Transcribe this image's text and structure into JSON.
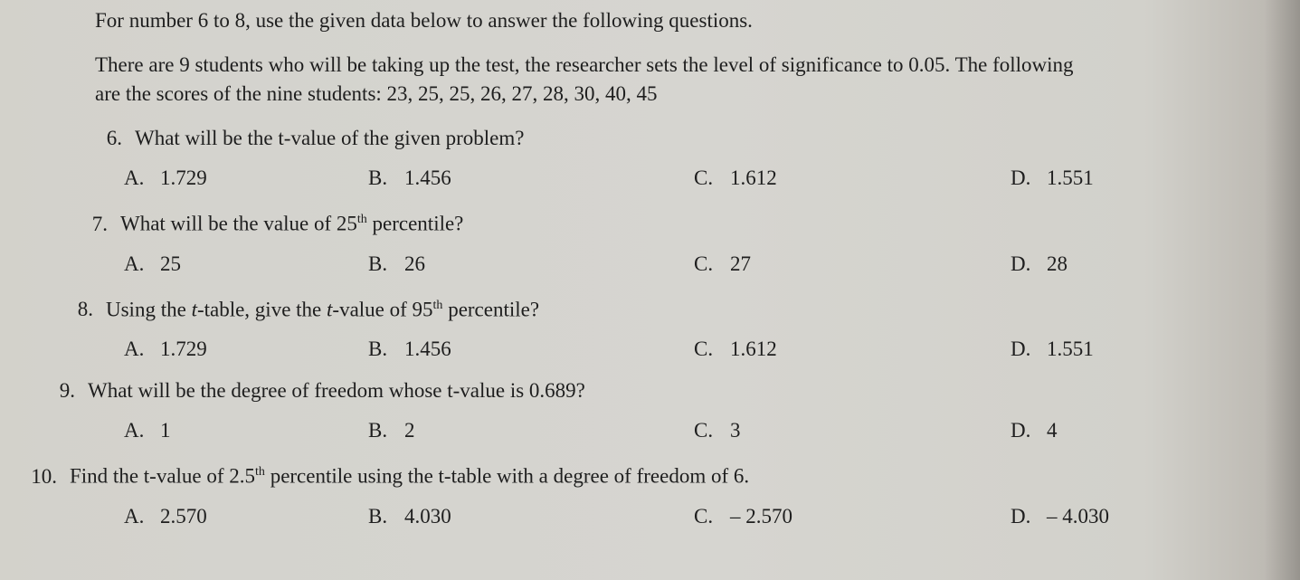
{
  "intro": "For number 6 to 8, use the given data below to answer the following questions.",
  "context_l1": "There are 9 students who will be taking up the test, the researcher sets the level of significance to 0.05. The following",
  "context_l2": "are the scores of the nine students: 23, 25, 25, 26, 27, 28, 30, 40, 45",
  "q6": {
    "num": "6.",
    "text": "What will be the t-value of the given problem?",
    "A": "1.729",
    "B": "1.456",
    "C": "1.612",
    "D": "1.551"
  },
  "q7": {
    "num": "7.",
    "text_pre": "What will be the value of 25",
    "text_sup": "th",
    "text_post": " percentile?",
    "A": "25",
    "B": "26",
    "C": "27",
    "D": "28"
  },
  "q8": {
    "num": "8.",
    "text_pre": "Using the ",
    "text_i1": "t",
    "text_mid": "-table, give the ",
    "text_i2": "t",
    "text_mid2": "-value of 95",
    "text_sup": "th",
    "text_post": " percentile?",
    "A": "1.729",
    "B": "1.456",
    "C": "1.612",
    "D": "1.551"
  },
  "q9": {
    "num": "9.",
    "text": "What will be the degree of freedom whose t-value is 0.689?",
    "A": "1",
    "B": "2",
    "C": "3",
    "D": "4"
  },
  "q10": {
    "num": "10.",
    "text_pre": "Find the t-value of 2.5",
    "text_sup": "th",
    "text_post": " percentile using the t-table with a degree of freedom of 6.",
    "A": "2.570",
    "B": "4.030",
    "C": "– 2.570",
    "D": "– 4.030"
  },
  "labels": {
    "A": "A.",
    "B": "B.",
    "C": "C.",
    "D": "D."
  }
}
